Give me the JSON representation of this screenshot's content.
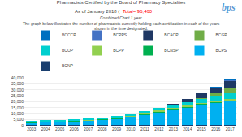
{
  "chart_data": {
    "type": "bar",
    "stacked": true,
    "title": "Pharmacists Certified by the Board of Pharmacy Specialties",
    "annotations": [
      {
        "text": "As of January 2018 ("
      },
      {
        "text": "Total= 96,460",
        "color": "#ff0000"
      },
      {
        "text": "Combined Chart 1 year"
      },
      {
        "text": "The graph below illustrates the number of pharmacists currently holding each certification in each of the years"
      },
      {
        "text": "shown in the time designated."
      },
      {
        "text": "bps",
        "color": "#5b9bd5"
      }
    ],
    "categories": [
      "2003",
      "2004",
      "2005",
      "2006",
      "2007",
      "2008",
      "2009",
      "2010",
      "2011",
      "2012",
      "2013",
      "2014",
      "2015",
      "2016",
      "2017"
    ],
    "series": [
      {
        "name": "BCNP",
        "color": "#1a3f6f",
        "values": [
          380,
          400,
          410,
          430,
          440,
          450,
          460,
          470,
          480,
          495,
          505,
          515,
          530,
          550,
          565
        ]
      },
      {
        "name": "BCPS",
        "color": "#00b0f0",
        "values": [
          2300,
          2700,
          3000,
          3500,
          4000,
          4700,
          5500,
          7000,
          8800,
          11000,
          13000,
          15000,
          17000,
          18500,
          20000
        ]
      },
      {
        "name": "BCNSP",
        "color": "#00b050",
        "values": [
          160,
          190,
          220,
          250,
          280,
          320,
          370,
          420,
          490,
          560,
          630,
          710,
          800,
          880,
          960
        ]
      },
      {
        "name": "BCPP",
        "color": "#92d050",
        "values": [
          260,
          290,
          310,
          340,
          370,
          400,
          440,
          490,
          545,
          610,
          680,
          760,
          850,
          930,
          1010
        ]
      },
      {
        "name": "BCOP",
        "color": "#00cfcf",
        "values": [
          440,
          510,
          590,
          690,
          810,
          950,
          1150,
          1400,
          1700,
          2060,
          2500,
          2980,
          3520,
          4100,
          4750
        ]
      },
      {
        "name": "BCGP",
        "color": "#70ad47",
        "values": [
          0,
          0,
          0,
          0,
          0,
          0,
          0,
          0,
          0,
          0,
          0,
          0,
          580,
          2100,
          4700
        ]
      },
      {
        "name": "BCACP",
        "color": "#1f3864",
        "values": [
          0,
          0,
          0,
          0,
          0,
          0,
          0,
          0,
          0,
          0,
          870,
          2100,
          3700,
          5100,
          5800
        ]
      },
      {
        "name": "BCPPS",
        "color": "#4472c4",
        "values": [
          0,
          0,
          0,
          0,
          0,
          0,
          0,
          0,
          0,
          0,
          0,
          0,
          0,
          0,
          850
        ]
      },
      {
        "name": "BCCCP",
        "color": "#0070c0",
        "values": [
          0,
          0,
          0,
          0,
          0,
          0,
          0,
          0,
          0,
          0,
          0,
          0,
          0,
          230,
          650
        ]
      }
    ],
    "ylim": [
      0,
      40000
    ],
    "yticks": [
      0,
      {
        "value": 5000,
        "label": "5,000"
      },
      {
        "value": 10000,
        "label": "10,000"
      },
      {
        "value": 15000,
        "label": "15,000"
      },
      {
        "value": 20000,
        "label": "20,000"
      },
      {
        "value": 25000,
        "label": "25,000"
      },
      {
        "value": 30000,
        "label": "30,000"
      },
      {
        "value": 35000,
        "label": "35,000"
      },
      {
        "value": 40000,
        "label": "40,000"
      }
    ],
    "grid": true,
    "legend": "top"
  }
}
